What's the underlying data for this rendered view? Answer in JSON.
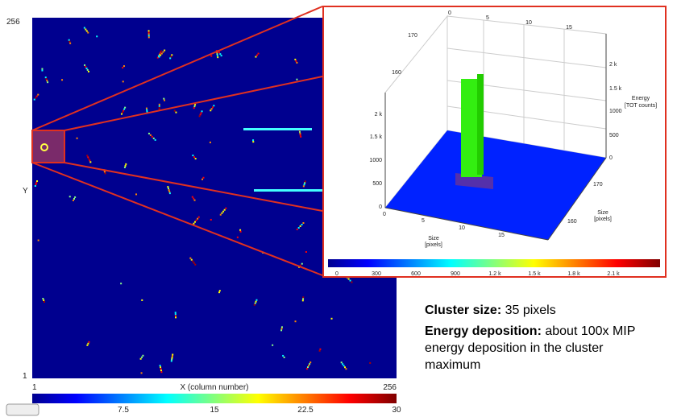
{
  "main_plot": {
    "y_top": "256",
    "y_label": "Y",
    "y_bottom": "1",
    "x_left": "1",
    "x_label": "X (column number)",
    "x_right": "256",
    "colorbar_ticks": [
      "7.5",
      "15",
      "22.5",
      "30"
    ]
  },
  "inset": {
    "top_ticks": [
      "0",
      "5",
      "10",
      "15"
    ],
    "back_left_ticks": [
      "170",
      "160"
    ],
    "z_right_ticks": [
      "2 k",
      "1.5 k",
      "1000",
      "500",
      "0"
    ],
    "z_label": [
      "Energy",
      "[TOT counts]"
    ],
    "z_left_ticks": [
      "2 k",
      "1.5 k",
      "1000",
      "500",
      "0"
    ],
    "front_ticks": [
      "0",
      "5",
      "10",
      "15"
    ],
    "front_label": [
      "Size",
      "[pixels]"
    ],
    "right_ticks": [
      "170",
      "160"
    ],
    "right_label": [
      "Size",
      "[pixels]"
    ],
    "colorbar_ticks": [
      "0",
      "300",
      "600",
      "900",
      "1.2 k",
      "1.5 k",
      "1.8 k",
      "2.1 k"
    ]
  },
  "caption": {
    "size_label": "Cluster size:",
    "size_value": " 35 pixels",
    "energy_label": "Energy deposition:",
    "energy_lines": [
      " about 100x MIP",
      "energy deposition in the cluster",
      "maximum"
    ]
  }
}
